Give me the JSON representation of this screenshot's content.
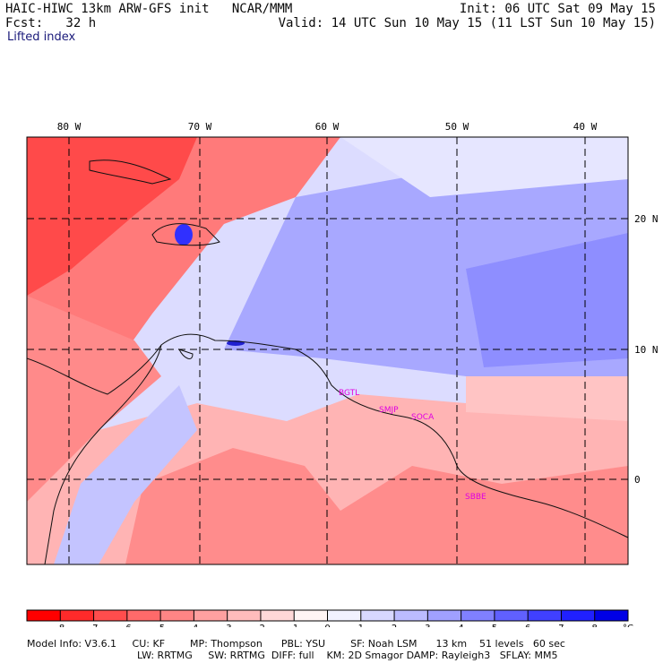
{
  "header": {
    "title": "HAIC-HIWC 13km ARW-GFS init   NCAR/MMM",
    "fcst": "Fcst:   32 h",
    "field": "Lifted index",
    "init": "Init: 06 UTC Sat 09 May 15",
    "valid": "Valid: 14 UTC Sun 10 May 15 (11 LST Sun 10 May 15)"
  },
  "map": {
    "lon_labels": [
      "80 W",
      "70 W",
      "60 W",
      "50 W",
      "40 W"
    ],
    "lat_labels": [
      "20 N",
      "10 N",
      "0"
    ],
    "stations": [
      "BGTL",
      "SMJP",
      "SOCA",
      "SBBE"
    ]
  },
  "colorbar": {
    "ticks": [
      "-8",
      "-7",
      "-6",
      "-5",
      "-4",
      "-3",
      "-2",
      "-1",
      "0",
      "1",
      "2",
      "3",
      "4",
      "5",
      "6",
      "7",
      "8"
    ],
    "unit": "°C",
    "colors": [
      "#ff0000",
      "#ff2a2a",
      "#ff4d4d",
      "#ff6a6a",
      "#ff8585",
      "#ffa0a0",
      "#ffbcbc",
      "#ffd8d8",
      "#fff4f4",
      "#f2f2ff",
      "#d8d8ff",
      "#bcbcff",
      "#a0a0ff",
      "#8080ff",
      "#6060ff",
      "#4040ff",
      "#2020ff",
      "#0000e6"
    ]
  },
  "footer": {
    "line1": "Model Info: V3.6.1     CU: KF        MP: Thompson      PBL: YSU        SF: Noah LSM      13 km    51 levels   60 sec",
    "line2": "LW: RRTMG     SW: RRTMG  DIFF: full    KM: 2D Smagor DAMP: Rayleigh3   SFLAY: MM5"
  }
}
